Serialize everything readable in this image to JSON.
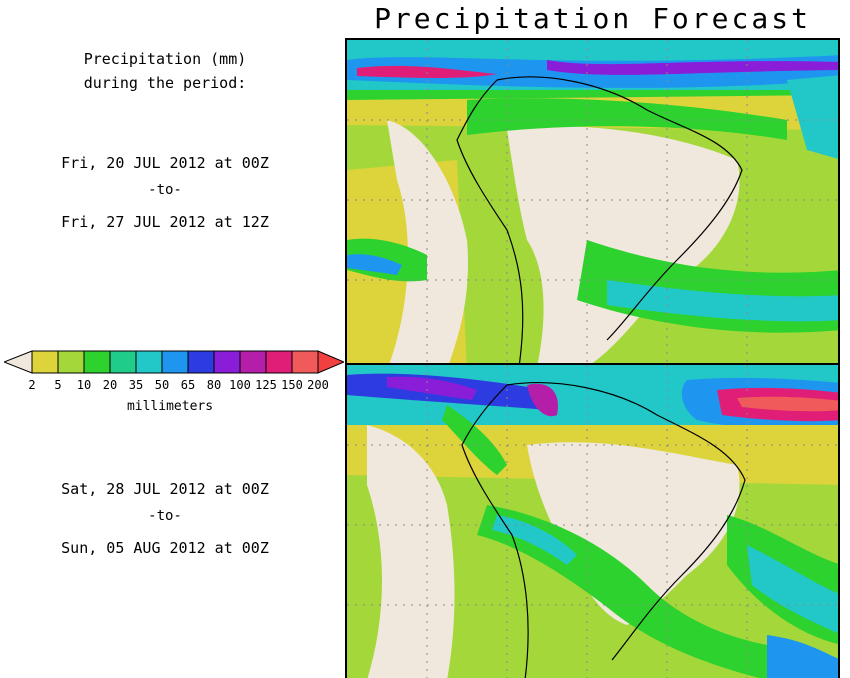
{
  "title": "Precipitation Forecast",
  "header": {
    "line1": "Precipitation (mm)",
    "line2": "during the period:"
  },
  "period1": {
    "start": "Fri, 20 JUL 2012 at 00Z",
    "sep": "-to-",
    "end": "Fri, 27 JUL 2012 at 12Z"
  },
  "period2": {
    "start": "Sat, 28 JUL 2012 at 00Z",
    "sep": "-to-",
    "end": "Sun, 05 AUG 2012 at 00Z"
  },
  "legend": {
    "units": "millimeters",
    "ticks": [
      "2",
      "5",
      "10",
      "20",
      "35",
      "50",
      "65",
      "80",
      "100",
      "125",
      "150",
      "200"
    ],
    "colors": [
      "#dcd43a",
      "#a4d83a",
      "#2ed22e",
      "#1fcc8a",
      "#22c8c8",
      "#1e96f0",
      "#2c3ce0",
      "#8a1ed8",
      "#b41ea8",
      "#e01e78",
      "#f05a5a"
    ],
    "low_color": "#f0e8dc",
    "high_color": "#f04040"
  }
}
